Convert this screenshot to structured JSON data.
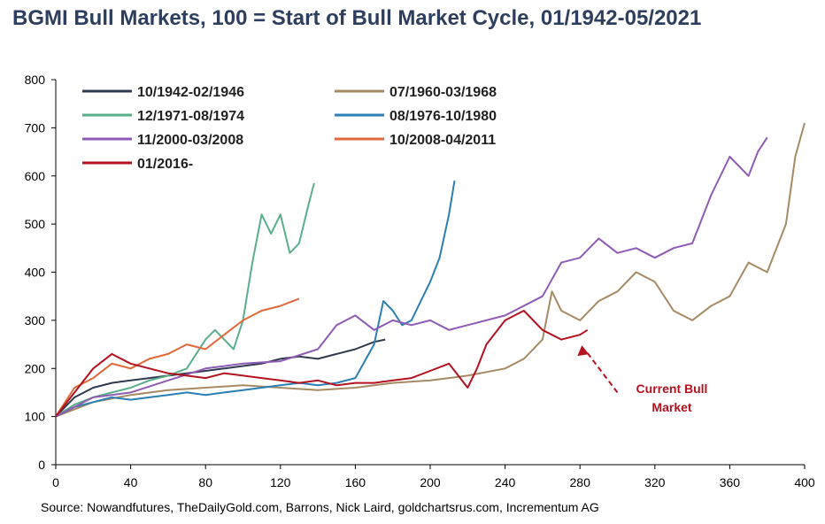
{
  "title": "BGMI Bull Markets, 100 = Start of Bull Market Cycle, 01/1942-05/2021",
  "source": "Source: Nowandfutures, TheDailyGold.com, Barrons, Nick Laird, goldchartsrus.com, Incrementum AG",
  "annotation": {
    "line1": "Current Bull",
    "line2": "Market",
    "color": "#b3121f"
  },
  "chart_data": {
    "type": "line",
    "title": "BGMI Bull Markets, 100 = Start of Bull Market Cycle, 01/1942-05/2021",
    "xlabel": "",
    "ylabel": "",
    "xlim": [
      0,
      400
    ],
    "ylim": [
      0,
      800
    ],
    "xticks": [
      0,
      40,
      80,
      120,
      160,
      200,
      240,
      280,
      320,
      360,
      400
    ],
    "yticks": [
      0,
      100,
      200,
      300,
      400,
      500,
      600,
      700,
      800
    ],
    "grid": false,
    "legend_position": "top-left",
    "series": [
      {
        "name": "10/1942-02/1946",
        "color": "#2f3a4f",
        "x": [
          0,
          10,
          20,
          30,
          40,
          50,
          60,
          70,
          80,
          90,
          100,
          110,
          120,
          130,
          140,
          150,
          160,
          170,
          176
        ],
        "y": [
          100,
          140,
          160,
          170,
          175,
          180,
          185,
          190,
          195,
          200,
          205,
          210,
          220,
          225,
          220,
          230,
          240,
          255,
          260
        ]
      },
      {
        "name": "07/1960-03/1968",
        "color": "#a68a64",
        "x": [
          0,
          20,
          40,
          60,
          80,
          100,
          120,
          140,
          160,
          180,
          200,
          220,
          240,
          250,
          260,
          265,
          270,
          280,
          290,
          300,
          310,
          320,
          330,
          340,
          350,
          360,
          370,
          380,
          390,
          395,
          400
        ],
        "y": [
          100,
          130,
          145,
          155,
          160,
          165,
          160,
          155,
          160,
          170,
          175,
          185,
          200,
          220,
          260,
          360,
          320,
          300,
          340,
          360,
          400,
          380,
          320,
          300,
          330,
          350,
          420,
          400,
          500,
          640,
          710
        ]
      },
      {
        "name": "12/1971-08/1974",
        "color": "#5aae8a",
        "x": [
          0,
          10,
          20,
          30,
          40,
          50,
          60,
          70,
          80,
          85,
          90,
          95,
          100,
          105,
          110,
          115,
          120,
          125,
          130,
          135,
          138
        ],
        "y": [
          100,
          125,
          140,
          150,
          160,
          175,
          185,
          200,
          260,
          280,
          260,
          240,
          300,
          420,
          520,
          480,
          520,
          440,
          460,
          540,
          585
        ]
      },
      {
        "name": "08/1976-10/1980",
        "color": "#2b7fb3",
        "x": [
          0,
          10,
          20,
          30,
          40,
          50,
          60,
          70,
          80,
          90,
          100,
          110,
          120,
          130,
          140,
          150,
          160,
          170,
          175,
          180,
          185,
          190,
          195,
          200,
          205,
          210,
          213
        ],
        "y": [
          100,
          120,
          130,
          140,
          135,
          140,
          145,
          150,
          145,
          150,
          155,
          160,
          165,
          170,
          165,
          170,
          180,
          250,
          340,
          320,
          290,
          300,
          340,
          380,
          430,
          520,
          590
        ]
      },
      {
        "name": "11/2000-03/2008",
        "color": "#8e5bb5",
        "x": [
          0,
          20,
          40,
          60,
          80,
          100,
          120,
          140,
          150,
          160,
          170,
          180,
          190,
          200,
          210,
          220,
          240,
          260,
          270,
          280,
          290,
          300,
          310,
          320,
          330,
          340,
          350,
          360,
          370,
          375,
          380
        ],
        "y": [
          100,
          140,
          150,
          175,
          200,
          210,
          215,
          240,
          290,
          310,
          280,
          300,
          290,
          300,
          280,
          290,
          310,
          350,
          420,
          430,
          470,
          440,
          450,
          430,
          450,
          460,
          560,
          640,
          600,
          650,
          680
        ]
      },
      {
        "name": "10/2008-04/2011",
        "color": "#e0683a",
        "x": [
          0,
          10,
          20,
          30,
          40,
          50,
          60,
          70,
          80,
          90,
          100,
          110,
          120,
          130
        ],
        "y": [
          100,
          160,
          180,
          210,
          200,
          220,
          230,
          250,
          240,
          270,
          300,
          320,
          330,
          345
        ]
      },
      {
        "name": "01/2016-",
        "color": "#b3121f",
        "x": [
          0,
          10,
          20,
          30,
          40,
          50,
          60,
          70,
          80,
          90,
          100,
          110,
          120,
          130,
          140,
          150,
          160,
          170,
          180,
          190,
          200,
          210,
          220,
          225,
          230,
          240,
          250,
          260,
          270,
          280,
          284
        ],
        "y": [
          100,
          150,
          200,
          230,
          210,
          200,
          190,
          185,
          180,
          190,
          185,
          180,
          175,
          170,
          175,
          165,
          170,
          170,
          175,
          180,
          195,
          210,
          160,
          200,
          250,
          300,
          320,
          280,
          260,
          270,
          280
        ]
      }
    ]
  }
}
